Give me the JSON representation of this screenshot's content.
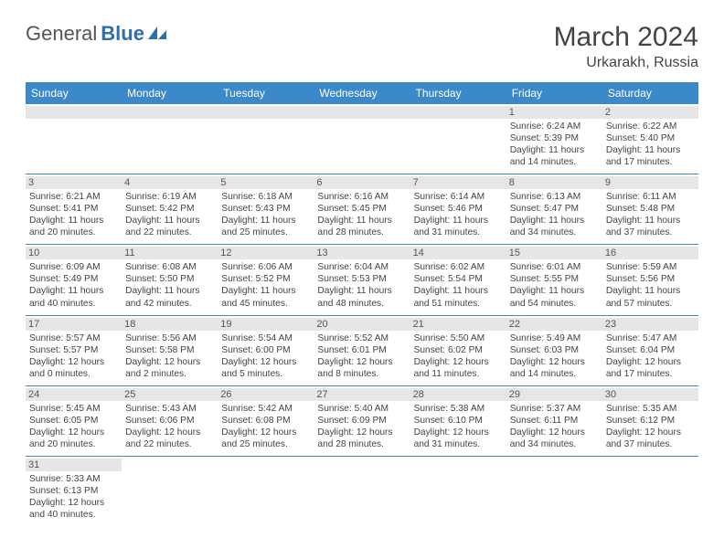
{
  "logo": {
    "part1": "General",
    "part2": "Blue"
  },
  "title": "March 2024",
  "location": "Urkarakh, Russia",
  "colors": {
    "header_bg": "#3b89c9",
    "header_text": "#ffffff",
    "daynum_bg": "#e6e6e6",
    "rule": "#3b89c9",
    "body_text": "#444444",
    "logo_gray": "#555555",
    "logo_blue": "#2f6fab"
  },
  "day_headers": [
    "Sunday",
    "Monday",
    "Tuesday",
    "Wednesday",
    "Thursday",
    "Friday",
    "Saturday"
  ],
  "weeks": [
    [
      null,
      null,
      null,
      null,
      null,
      {
        "n": "1",
        "sr": "Sunrise: 6:24 AM",
        "ss": "Sunset: 5:39 PM",
        "d1": "Daylight: 11 hours",
        "d2": "and 14 minutes."
      },
      {
        "n": "2",
        "sr": "Sunrise: 6:22 AM",
        "ss": "Sunset: 5:40 PM",
        "d1": "Daylight: 11 hours",
        "d2": "and 17 minutes."
      }
    ],
    [
      {
        "n": "3",
        "sr": "Sunrise: 6:21 AM",
        "ss": "Sunset: 5:41 PM",
        "d1": "Daylight: 11 hours",
        "d2": "and 20 minutes."
      },
      {
        "n": "4",
        "sr": "Sunrise: 6:19 AM",
        "ss": "Sunset: 5:42 PM",
        "d1": "Daylight: 11 hours",
        "d2": "and 22 minutes."
      },
      {
        "n": "5",
        "sr": "Sunrise: 6:18 AM",
        "ss": "Sunset: 5:43 PM",
        "d1": "Daylight: 11 hours",
        "d2": "and 25 minutes."
      },
      {
        "n": "6",
        "sr": "Sunrise: 6:16 AM",
        "ss": "Sunset: 5:45 PM",
        "d1": "Daylight: 11 hours",
        "d2": "and 28 minutes."
      },
      {
        "n": "7",
        "sr": "Sunrise: 6:14 AM",
        "ss": "Sunset: 5:46 PM",
        "d1": "Daylight: 11 hours",
        "d2": "and 31 minutes."
      },
      {
        "n": "8",
        "sr": "Sunrise: 6:13 AM",
        "ss": "Sunset: 5:47 PM",
        "d1": "Daylight: 11 hours",
        "d2": "and 34 minutes."
      },
      {
        "n": "9",
        "sr": "Sunrise: 6:11 AM",
        "ss": "Sunset: 5:48 PM",
        "d1": "Daylight: 11 hours",
        "d2": "and 37 minutes."
      }
    ],
    [
      {
        "n": "10",
        "sr": "Sunrise: 6:09 AM",
        "ss": "Sunset: 5:49 PM",
        "d1": "Daylight: 11 hours",
        "d2": "and 40 minutes."
      },
      {
        "n": "11",
        "sr": "Sunrise: 6:08 AM",
        "ss": "Sunset: 5:50 PM",
        "d1": "Daylight: 11 hours",
        "d2": "and 42 minutes."
      },
      {
        "n": "12",
        "sr": "Sunrise: 6:06 AM",
        "ss": "Sunset: 5:52 PM",
        "d1": "Daylight: 11 hours",
        "d2": "and 45 minutes."
      },
      {
        "n": "13",
        "sr": "Sunrise: 6:04 AM",
        "ss": "Sunset: 5:53 PM",
        "d1": "Daylight: 11 hours",
        "d2": "and 48 minutes."
      },
      {
        "n": "14",
        "sr": "Sunrise: 6:02 AM",
        "ss": "Sunset: 5:54 PM",
        "d1": "Daylight: 11 hours",
        "d2": "and 51 minutes."
      },
      {
        "n": "15",
        "sr": "Sunrise: 6:01 AM",
        "ss": "Sunset: 5:55 PM",
        "d1": "Daylight: 11 hours",
        "d2": "and 54 minutes."
      },
      {
        "n": "16",
        "sr": "Sunrise: 5:59 AM",
        "ss": "Sunset: 5:56 PM",
        "d1": "Daylight: 11 hours",
        "d2": "and 57 minutes."
      }
    ],
    [
      {
        "n": "17",
        "sr": "Sunrise: 5:57 AM",
        "ss": "Sunset: 5:57 PM",
        "d1": "Daylight: 12 hours",
        "d2": "and 0 minutes."
      },
      {
        "n": "18",
        "sr": "Sunrise: 5:56 AM",
        "ss": "Sunset: 5:58 PM",
        "d1": "Daylight: 12 hours",
        "d2": "and 2 minutes."
      },
      {
        "n": "19",
        "sr": "Sunrise: 5:54 AM",
        "ss": "Sunset: 6:00 PM",
        "d1": "Daylight: 12 hours",
        "d2": "and 5 minutes."
      },
      {
        "n": "20",
        "sr": "Sunrise: 5:52 AM",
        "ss": "Sunset: 6:01 PM",
        "d1": "Daylight: 12 hours",
        "d2": "and 8 minutes."
      },
      {
        "n": "21",
        "sr": "Sunrise: 5:50 AM",
        "ss": "Sunset: 6:02 PM",
        "d1": "Daylight: 12 hours",
        "d2": "and 11 minutes."
      },
      {
        "n": "22",
        "sr": "Sunrise: 5:49 AM",
        "ss": "Sunset: 6:03 PM",
        "d1": "Daylight: 12 hours",
        "d2": "and 14 minutes."
      },
      {
        "n": "23",
        "sr": "Sunrise: 5:47 AM",
        "ss": "Sunset: 6:04 PM",
        "d1": "Daylight: 12 hours",
        "d2": "and 17 minutes."
      }
    ],
    [
      {
        "n": "24",
        "sr": "Sunrise: 5:45 AM",
        "ss": "Sunset: 6:05 PM",
        "d1": "Daylight: 12 hours",
        "d2": "and 20 minutes."
      },
      {
        "n": "25",
        "sr": "Sunrise: 5:43 AM",
        "ss": "Sunset: 6:06 PM",
        "d1": "Daylight: 12 hours",
        "d2": "and 22 minutes."
      },
      {
        "n": "26",
        "sr": "Sunrise: 5:42 AM",
        "ss": "Sunset: 6:08 PM",
        "d1": "Daylight: 12 hours",
        "d2": "and 25 minutes."
      },
      {
        "n": "27",
        "sr": "Sunrise: 5:40 AM",
        "ss": "Sunset: 6:09 PM",
        "d1": "Daylight: 12 hours",
        "d2": "and 28 minutes."
      },
      {
        "n": "28",
        "sr": "Sunrise: 5:38 AM",
        "ss": "Sunset: 6:10 PM",
        "d1": "Daylight: 12 hours",
        "d2": "and 31 minutes."
      },
      {
        "n": "29",
        "sr": "Sunrise: 5:37 AM",
        "ss": "Sunset: 6:11 PM",
        "d1": "Daylight: 12 hours",
        "d2": "and 34 minutes."
      },
      {
        "n": "30",
        "sr": "Sunrise: 5:35 AM",
        "ss": "Sunset: 6:12 PM",
        "d1": "Daylight: 12 hours",
        "d2": "and 37 minutes."
      }
    ],
    [
      {
        "n": "31",
        "sr": "Sunrise: 5:33 AM",
        "ss": "Sunset: 6:13 PM",
        "d1": "Daylight: 12 hours",
        "d2": "and 40 minutes."
      },
      null,
      null,
      null,
      null,
      null,
      null
    ]
  ]
}
